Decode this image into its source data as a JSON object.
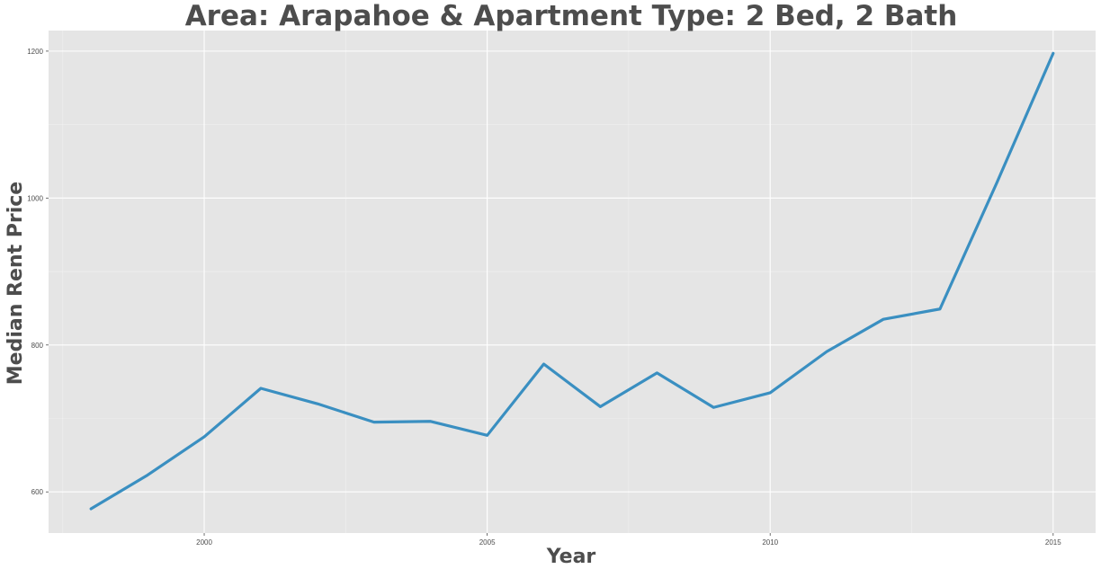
{
  "chart_data": {
    "type": "line",
    "title": "Area: Arapahoe & Apartment Type: 2 Bed, 2 Bath",
    "xlabel": "Year",
    "ylabel": "Median Rent Price",
    "x": [
      1998,
      1999,
      2000,
      2001,
      2002,
      2003,
      2004,
      2005,
      2006,
      2007,
      2008,
      2009,
      2010,
      2011,
      2012,
      2013,
      2014,
      2015
    ],
    "series": [
      {
        "name": "Median Rent Price",
        "color": "#3a8fc1",
        "values": [
          577,
          623,
          675,
          741,
          720,
          695,
          696,
          677,
          774,
          716,
          762,
          715,
          735,
          791,
          835,
          849,
          1020,
          1197
        ]
      }
    ],
    "xlim": [
      1997.25,
      2015.75
    ],
    "ylim": [
      544,
      1228
    ],
    "xticks": [
      2000,
      2005,
      2010,
      2015
    ],
    "xtick_labels": [
      "2000",
      "2005",
      "2010",
      "2015"
    ],
    "yticks": [
      600,
      800,
      1000,
      1200
    ],
    "ytick_labels": [
      "600",
      "800",
      "1000",
      "1200"
    ],
    "grid": true,
    "legend": "none"
  }
}
